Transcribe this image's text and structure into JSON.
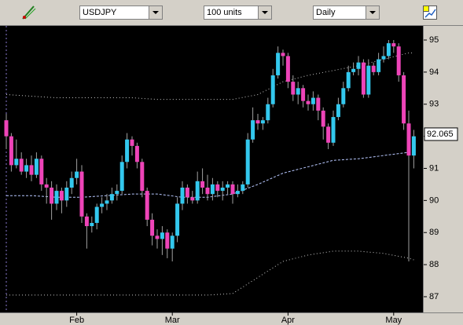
{
  "toolbar": {
    "symbol": "USDJPY",
    "units": "100 units",
    "period": "Daily"
  },
  "chart_data": {
    "type": "candlestick",
    "categories": [
      null,
      null,
      null,
      null,
      null,
      null,
      null,
      null,
      null,
      null,
      null,
      null,
      null,
      null,
      "Feb",
      null,
      null,
      null,
      null,
      null,
      null,
      null,
      null,
      null,
      null,
      null,
      null,
      null,
      null,
      null,
      null,
      null,
      null,
      "Mar",
      null,
      null,
      null,
      null,
      null,
      null,
      null,
      null,
      null,
      null,
      null,
      null,
      null,
      null,
      null,
      null,
      null,
      null,
      null,
      null,
      null,
      null,
      "Apr",
      null,
      null,
      null,
      null,
      null,
      null,
      null,
      null,
      null,
      null,
      null,
      null,
      null,
      null,
      null,
      null,
      null,
      null,
      null,
      null,
      "May",
      null,
      null,
      null,
      null
    ],
    "open": [
      92.5,
      92.0,
      91.1,
      91.3,
      90.9,
      91.1,
      90.8,
      91.3,
      90.5,
      90.4,
      89.9,
      90.3,
      90.0,
      90.4,
      90.7,
      90.9,
      89.5,
      89.2,
      89.3,
      89.8,
      89.9,
      90.0,
      90.2,
      90.3,
      91.2,
      91.9,
      91.7,
      91.2,
      90.3,
      89.4,
      88.9,
      88.8,
      89.0,
      88.5,
      88.9,
      89.9,
      90.4,
      90.1,
      90.0,
      90.6,
      90.4,
      90.2,
      90.5,
      90.3,
      90.4,
      90.5,
      90.2,
      90.3,
      90.5,
      91.9,
      92.5,
      92.4,
      92.5,
      93.0,
      93.9,
      94.6,
      94.5,
      93.7,
      93.3,
      93.5,
      93.1,
      93.0,
      93.2,
      92.8,
      92.3,
      91.8,
      92.6,
      93.0,
      93.5,
      94.0,
      94.1,
      94.3,
      93.3,
      94.2,
      94.0,
      94.4,
      94.5,
      94.9,
      94.8,
      93.9,
      92.4,
      91.4
    ],
    "high": [
      92.7,
      92.1,
      91.9,
      91.5,
      91.3,
      91.4,
      91.5,
      91.4,
      90.7,
      90.6,
      90.5,
      90.4,
      90.6,
      90.9,
      91.3,
      91.1,
      89.6,
      89.5,
      89.9,
      90.1,
      90.2,
      90.4,
      90.5,
      91.4,
      92.1,
      92.0,
      91.8,
      91.3,
      90.4,
      89.6,
      89.1,
      89.2,
      89.1,
      89.0,
      90.1,
      90.6,
      90.5,
      90.3,
      90.9,
      91.0,
      90.8,
      90.7,
      90.6,
      90.6,
      90.6,
      90.6,
      90.5,
      90.6,
      92.1,
      92.9,
      92.7,
      92.6,
      93.2,
      94.1,
      94.8,
      94.7,
      94.6,
      93.9,
      93.7,
      93.6,
      93.3,
      93.4,
      93.3,
      92.9,
      92.4,
      92.8,
      93.2,
      93.7,
      94.2,
      94.3,
      94.5,
      94.4,
      94.4,
      94.3,
      94.6,
      94.8,
      95.0,
      95.0,
      94.9,
      94.0,
      92.8,
      92.2
    ],
    "low": [
      91.6,
      90.9,
      91.0,
      90.8,
      90.7,
      90.6,
      90.7,
      90.3,
      89.9,
      89.4,
      89.7,
      89.6,
      89.8,
      90.2,
      90.5,
      89.3,
      88.5,
      89.0,
      89.1,
      89.6,
      89.7,
      89.9,
      90.0,
      90.2,
      91.0,
      91.4,
      91.0,
      90.1,
      89.2,
      88.6,
      88.5,
      88.3,
      88.2,
      88.1,
      88.7,
      89.7,
      89.9,
      89.9,
      89.9,
      90.2,
      90.0,
      90.0,
      90.1,
      90.0,
      90.2,
      89.9,
      90.1,
      90.2,
      90.4,
      91.8,
      92.2,
      92.2,
      92.4,
      92.9,
      93.8,
      94.2,
      93.5,
      93.1,
      93.0,
      92.9,
      92.8,
      92.8,
      92.5,
      91.9,
      91.6,
      91.7,
      92.5,
      92.9,
      93.4,
      93.9,
      93.9,
      93.2,
      93.2,
      93.9,
      93.9,
      94.3,
      94.4,
      94.6,
      93.7,
      92.2,
      88.1,
      91.0
    ],
    "close": [
      92.0,
      91.1,
      91.3,
      90.9,
      91.1,
      90.8,
      91.3,
      90.5,
      90.4,
      89.9,
      90.3,
      90.0,
      90.4,
      90.7,
      90.9,
      89.5,
      89.2,
      89.3,
      89.8,
      89.9,
      90.0,
      90.2,
      90.3,
      91.2,
      91.9,
      91.7,
      91.2,
      90.3,
      89.4,
      88.9,
      88.8,
      89.0,
      88.5,
      88.9,
      89.9,
      90.4,
      90.1,
      90.0,
      90.6,
      90.4,
      90.2,
      90.5,
      90.3,
      90.4,
      90.5,
      90.2,
      90.3,
      90.5,
      91.9,
      92.5,
      92.4,
      92.5,
      93.0,
      93.9,
      94.6,
      94.5,
      93.7,
      93.3,
      93.5,
      93.1,
      93.0,
      93.2,
      92.8,
      92.3,
      91.8,
      92.6,
      93.0,
      93.5,
      94.0,
      94.1,
      94.3,
      93.3,
      94.2,
      94.0,
      94.4,
      94.5,
      94.9,
      94.8,
      93.9,
      92.4,
      91.4,
      92.0
    ],
    "up_color": "#33c8ee",
    "down_color": "#ee44b8",
    "wick_color": "#a0a0a0",
    "overlays": [
      {
        "x": [
          0,
          5,
          10,
          15,
          20,
          25,
          30,
          35,
          40,
          45,
          50,
          55,
          60,
          65,
          70,
          75,
          80,
          81
        ],
        "values": [
          93.3,
          93.25,
          93.2,
          93.2,
          93.2,
          93.2,
          93.15,
          93.15,
          93.15,
          93.15,
          93.3,
          93.7,
          93.9,
          94.05,
          94.2,
          94.4,
          94.6,
          94.6
        ],
        "color": "#c8c8c8",
        "style": "dotted"
      },
      {
        "x": [
          0,
          5,
          10,
          15,
          20,
          25,
          30,
          35,
          40,
          45,
          50,
          55,
          60,
          65,
          70,
          75,
          80,
          81
        ],
        "values": [
          90.15,
          90.15,
          90.1,
          90.1,
          90.15,
          90.2,
          90.2,
          90.1,
          90.1,
          90.2,
          90.5,
          90.85,
          91.05,
          91.25,
          91.3,
          91.4,
          91.5,
          91.5
        ],
        "color": "#b8c8ff",
        "style": "dashed"
      },
      {
        "x": [
          0,
          5,
          10,
          15,
          20,
          25,
          30,
          35,
          40,
          45,
          50,
          55,
          60,
          65,
          70,
          75,
          80,
          81
        ],
        "values": [
          87.05,
          87.05,
          87.05,
          87.05,
          87.05,
          87.05,
          87.05,
          87.05,
          87.05,
          87.1,
          87.6,
          88.1,
          88.3,
          88.42,
          88.42,
          88.35,
          88.2,
          88.15
        ],
        "color": "#c8c8c8",
        "style": "dotted"
      }
    ],
    "last_price": 92.065,
    "ylim": [
      86.51,
      95.44
    ],
    "yticks": [
      87,
      88,
      89,
      90,
      91,
      92,
      93,
      94,
      95
    ]
  }
}
